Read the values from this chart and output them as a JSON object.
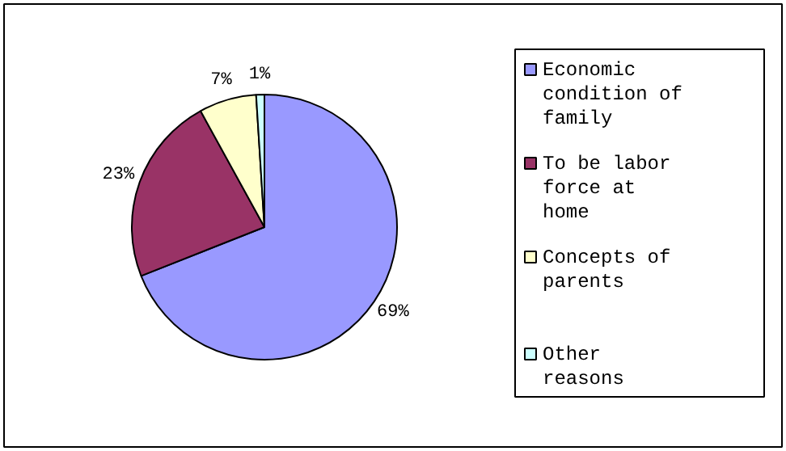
{
  "chart_data": {
    "type": "pie",
    "categories": [
      "Economic condition of family",
      "To be labor force at home",
      "Concepts of parents",
      "Other reasons"
    ],
    "values": [
      69,
      23,
      7,
      1
    ],
    "value_labels": [
      "69%",
      "23%",
      "7%",
      "1%"
    ],
    "colors": [
      "#9999ff",
      "#993366",
      "#ffffcc",
      "#ccffff"
    ],
    "legend": "right"
  }
}
